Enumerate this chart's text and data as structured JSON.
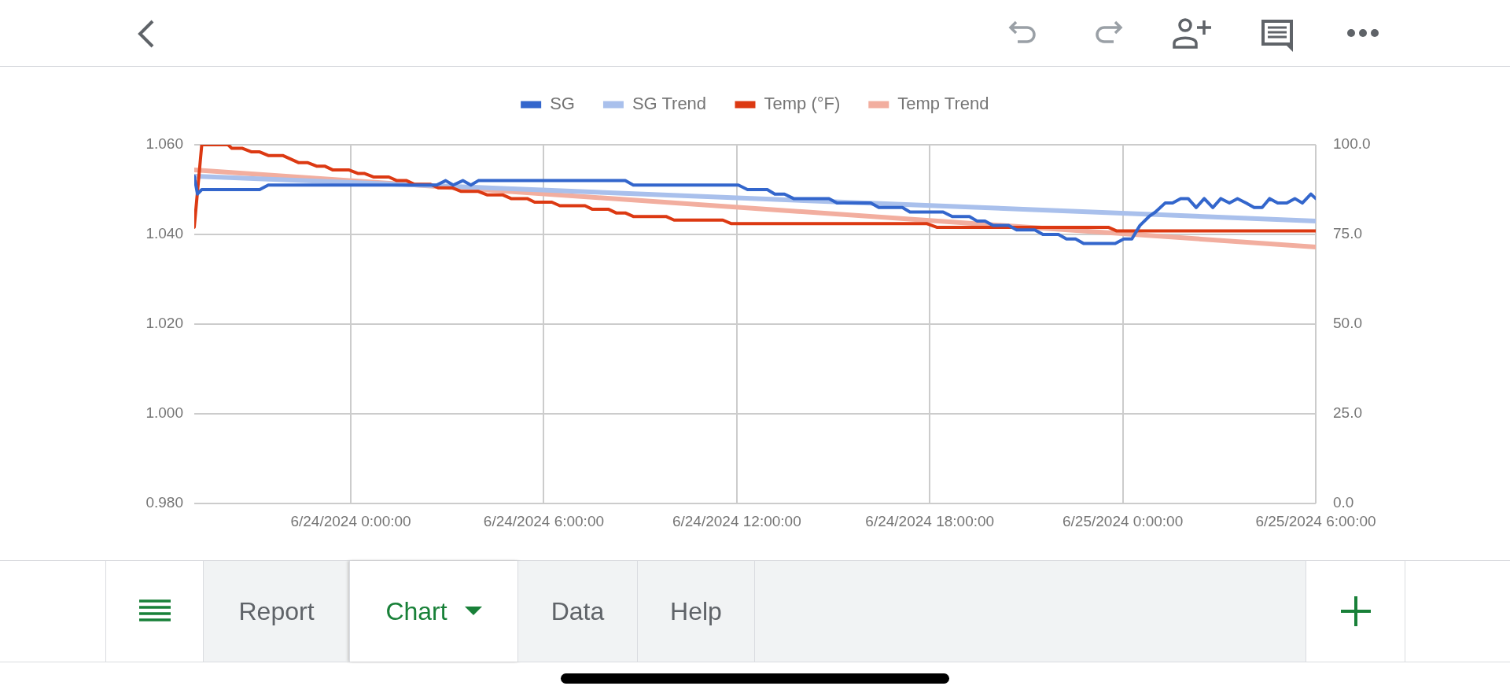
{
  "chart_data": {
    "type": "line",
    "xlim": [
      "2024-06-23T19:08",
      "2024-06-25T06:00"
    ],
    "xticks": [
      {
        "value": "2024-06-24T00:00",
        "label": "6/24/2024 0:00:00"
      },
      {
        "value": "2024-06-24T06:00",
        "label": "6/24/2024 6:00:00"
      },
      {
        "value": "2024-06-24T12:00",
        "label": "6/24/2024 12:00:00"
      },
      {
        "value": "2024-06-24T18:00",
        "label": "6/24/2024 18:00:00"
      },
      {
        "value": "2024-06-25T00:00",
        "label": "6/25/2024 0:00:00"
      },
      {
        "value": "2024-06-25T06:00",
        "label": "6/25/2024 6:00:00"
      }
    ],
    "ylim": [
      0.98,
      1.06
    ],
    "yticks": [
      {
        "value": 0.98,
        "label": "0.980"
      },
      {
        "value": 1.0,
        "label": "1.000"
      },
      {
        "value": 1.02,
        "label": "1.020"
      },
      {
        "value": 1.04,
        "label": "1.040"
      },
      {
        "value": 1.06,
        "label": "1.060"
      }
    ],
    "y2lim": [
      0,
      100
    ],
    "y2ticks": [
      {
        "value": 0,
        "label": "0.0"
      },
      {
        "value": 25,
        "label": "25.0"
      },
      {
        "value": 50,
        "label": "50.0"
      },
      {
        "value": 75,
        "label": "75.0"
      },
      {
        "value": 100,
        "label": "100.0"
      }
    ],
    "grid": true,
    "legend": "top",
    "marker": "none",
    "line_style": "solid",
    "annotations": [
      "Report",
      "Chart",
      "Data",
      "Help"
    ],
    "series": [
      {
        "name": "SG",
        "color": "#3366cc",
        "x": [
          "2024-06-23T19:08",
          "2024-06-23T19:14",
          "2024-06-23T19:22",
          "2024-06-23T21:10",
          "2024-06-23T21:26",
          "2024-06-24T02:40",
          "2024-06-24T02:57",
          "2024-06-24T03:11",
          "2024-06-24T03:29",
          "2024-06-24T03:44",
          "2024-06-24T03:58",
          "2024-06-24T08:32",
          "2024-06-24T08:47",
          "2024-06-24T12:03",
          "2024-06-24T12:20",
          "2024-06-24T12:57",
          "2024-06-24T13:11",
          "2024-06-24T13:29",
          "2024-06-24T13:46",
          "2024-06-24T14:52",
          "2024-06-24T15:07",
          "2024-06-24T16:10",
          "2024-06-24T16:25",
          "2024-06-24T17:09",
          "2024-06-24T17:23",
          "2024-06-24T18:25",
          "2024-06-24T18:42",
          "2024-06-24T19:14",
          "2024-06-24T19:28",
          "2024-06-24T19:43",
          "2024-06-24T19:58",
          "2024-06-24T20:27",
          "2024-06-24T20:42",
          "2024-06-24T21:16",
          "2024-06-24T21:31",
          "2024-06-24T22:00",
          "2024-06-24T22:15",
          "2024-06-24T22:32",
          "2024-06-24T22:47",
          "2024-06-24T23:46",
          "2024-06-25T00:02",
          "2024-06-25T00:17",
          "2024-06-25T00:32",
          "2024-06-25T00:49",
          "2024-06-25T01:01",
          "2024-06-25T01:19",
          "2024-06-25T01:33",
          "2024-06-25T01:48",
          "2024-06-25T02:02",
          "2024-06-25T02:17",
          "2024-06-25T02:32",
          "2024-06-25T02:48",
          "2024-06-25T03:03",
          "2024-06-25T03:19",
          "2024-06-25T03:34",
          "2024-06-25T03:50",
          "2024-06-25T04:05",
          "2024-06-25T04:20",
          "2024-06-25T04:34",
          "2024-06-25T04:49",
          "2024-06-25T05:06",
          "2024-06-25T05:21",
          "2024-06-25T05:35",
          "2024-06-25T05:51",
          "2024-06-25T06:00"
        ],
        "values": [
          1.053,
          1.049,
          1.05,
          1.05,
          1.051,
          1.051,
          1.052,
          1.051,
          1.052,
          1.051,
          1.052,
          1.052,
          1.051,
          1.051,
          1.05,
          1.05,
          1.049,
          1.049,
          1.048,
          1.048,
          1.047,
          1.047,
          1.046,
          1.046,
          1.045,
          1.045,
          1.044,
          1.044,
          1.043,
          1.043,
          1.042,
          1.042,
          1.041,
          1.041,
          1.04,
          1.04,
          1.039,
          1.039,
          1.038,
          1.038,
          1.039,
          1.039,
          1.042,
          1.044,
          1.045,
          1.047,
          1.047,
          1.048,
          1.048,
          1.046,
          1.048,
          1.046,
          1.048,
          1.047,
          1.048,
          1.047,
          1.046,
          1.046,
          1.048,
          1.047,
          1.047,
          1.048,
          1.047,
          1.049,
          1.048
        ]
      },
      {
        "name": "SG Trend",
        "color": "#a9c0ec",
        "x": [
          "2024-06-23T19:08",
          "2024-06-25T06:00"
        ],
        "values": [
          1.053,
          1.043
        ]
      },
      {
        "name": "Temp (°F)",
        "color": "#dc3912",
        "axis": "y2",
        "x": [
          "2024-06-23T19:08",
          "2024-06-23T19:22",
          "2024-06-23T20:11",
          "2024-06-23T20:18",
          "2024-06-23T20:38",
          "2024-06-23T20:55",
          "2024-06-23T21:10",
          "2024-06-23T21:26",
          "2024-06-23T21:53",
          "2024-06-23T22:23",
          "2024-06-23T22:40",
          "2024-06-23T22:57",
          "2024-06-23T23:12",
          "2024-06-23T23:26",
          "2024-06-23T23:56",
          "2024-06-24T00:13",
          "2024-06-24T00:25",
          "2024-06-24T00:43",
          "2024-06-24T01:11",
          "2024-06-24T01:26",
          "2024-06-24T01:44",
          "2024-06-24T01:58",
          "2024-06-24T02:28",
          "2024-06-24T02:43",
          "2024-06-24T03:09",
          "2024-06-24T03:26",
          "2024-06-24T03:58",
          "2024-06-24T04:15",
          "2024-06-24T04:44",
          "2024-06-24T04:59",
          "2024-06-24T05:29",
          "2024-06-24T05:43",
          "2024-06-24T06:15",
          "2024-06-24T06:30",
          "2024-06-24T07:17",
          "2024-06-24T07:31",
          "2024-06-24T08:01",
          "2024-06-24T08:15",
          "2024-06-24T08:32",
          "2024-06-24T08:47",
          "2024-06-24T09:48",
          "2024-06-24T10:03",
          "2024-06-24T11:34",
          "2024-06-24T11:50",
          "2024-06-24T17:55",
          "2024-06-24T18:13",
          "2024-06-24T23:33",
          "2024-06-24T23:48",
          "2024-06-25T06:00"
        ],
        "values": [
          77,
          100,
          100,
          99,
          99,
          98,
          98,
          97,
          97,
          95,
          95,
          94,
          94,
          93,
          93,
          92,
          92,
          91,
          91,
          90,
          90,
          89,
          89,
          88,
          88,
          87,
          87,
          86,
          86,
          85,
          85,
          84,
          84,
          83,
          83,
          82,
          82,
          81,
          81,
          80,
          80,
          79,
          79,
          78,
          78,
          77,
          77,
          76,
          76
        ]
      },
      {
        "name": "Temp Trend",
        "color": "#f2ae9f",
        "axis": "y2",
        "x": [
          "2024-06-23T19:08",
          "2024-06-25T06:00"
        ],
        "values": [
          93.0,
          71.5
        ]
      }
    ]
  }
}
